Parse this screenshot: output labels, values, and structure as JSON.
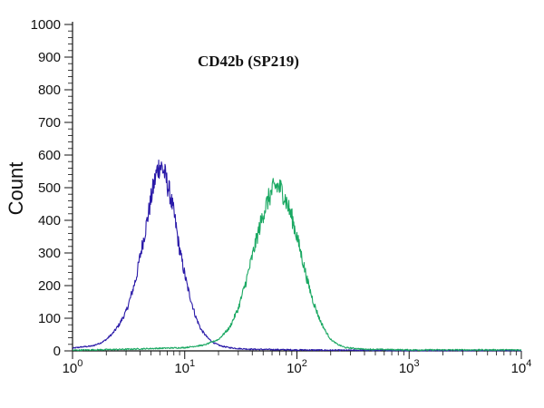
{
  "chart_data": {
    "type": "line",
    "title": "CD42b (SP219)",
    "xlabel": "",
    "ylabel": "Count",
    "xscale": "log",
    "xlim": [
      1,
      10000
    ],
    "ylim": [
      0,
      1000
    ],
    "xticks": [
      {
        "value": 1,
        "base": "10",
        "exp": "0"
      },
      {
        "value": 10,
        "base": "10",
        "exp": "1"
      },
      {
        "value": 100,
        "base": "10",
        "exp": "2"
      },
      {
        "value": 1000,
        "base": "10",
        "exp": "3"
      },
      {
        "value": 10000,
        "base": "10",
        "exp": "4"
      }
    ],
    "yticks": [
      0,
      100,
      200,
      300,
      400,
      500,
      600,
      700,
      800,
      900,
      1000
    ],
    "grid": false,
    "legend": "none",
    "series": [
      {
        "color": "#2a1aa8",
        "x": [
          1.0,
          1.2,
          1.5,
          1.8,
          2.0,
          2.3,
          2.6,
          3.0,
          3.3,
          3.7,
          4.0,
          4.4,
          4.8,
          5.1,
          5.4,
          5.7,
          6.0,
          6.3,
          6.6,
          7.0,
          7.4,
          7.8,
          8.3,
          8.8,
          9.5,
          10.5,
          11.5,
          12.5,
          14.0,
          16.0,
          18.0,
          21.0,
          25.0,
          30.0,
          40.0,
          60.0,
          100.0,
          200.0,
          1000.0,
          10000.0
        ],
        "y": [
          8,
          12,
          15,
          25,
          35,
          55,
          80,
          120,
          165,
          225,
          290,
          360,
          430,
          480,
          520,
          555,
          570,
          560,
          545,
          510,
          480,
          440,
          390,
          330,
          270,
          200,
          150,
          105,
          65,
          40,
          25,
          15,
          10,
          7,
          5,
          4,
          3,
          2,
          1,
          1
        ]
      },
      {
        "color": "#1aa862",
        "x": [
          1.0,
          3.0,
          10.0,
          15.0,
          20.0,
          25.0,
          30.0,
          35.0,
          40.0,
          45.0,
          50.0,
          55.0,
          60.0,
          65.0,
          70.0,
          75.0,
          80.0,
          90.0,
          100.0,
          110.0,
          125.0,
          140.0,
          160.0,
          180.0,
          200.0,
          230.0,
          270.0,
          400.0,
          1000.0,
          10000.0
        ],
        "y": [
          2,
          5,
          10,
          18,
          35,
          70,
          130,
          210,
          290,
          360,
          420,
          460,
          490,
          505,
          500,
          485,
          460,
          410,
          350,
          290,
          210,
          150,
          95,
          60,
          35,
          20,
          10,
          5,
          3,
          3
        ]
      }
    ]
  }
}
